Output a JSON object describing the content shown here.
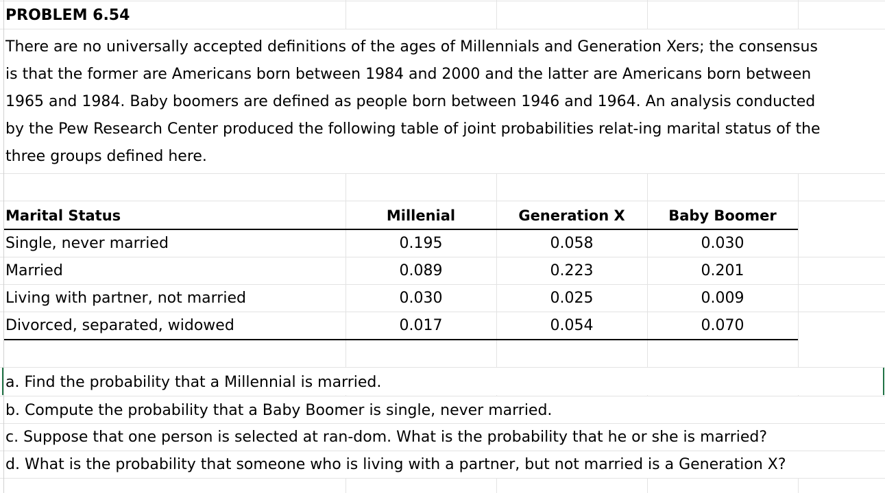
{
  "title": "PROBLEM 6.54",
  "description_lines": [
    "There are no universally accepted definitions of the ages of Millennials and Generation Xers; the consensus",
    "is that the former are Americans born between 1984 and 2000 and the latter are Americans born between",
    "1965 and 1984. Baby boomers are defined as people born between 1946 and 1964. An analysis conducted",
    "by the Pew Research Center produced the following table of joint probabilities relat-ing marital status of the",
    "three groups defined here."
  ],
  "table": {
    "headers": [
      "Marital Status",
      "Millenial",
      "Generation X",
      "Baby Boomer"
    ],
    "rows": [
      {
        "status": "Single, never married",
        "millenial": "0.195",
        "genx": "0.058",
        "boomer": "0.030"
      },
      {
        "status": "Married",
        "millenial": "0.089",
        "genx": "0.223",
        "boomer": "0.201"
      },
      {
        "status": "Living with partner, not married",
        "millenial": "0.030",
        "genx": "0.025",
        "boomer": "0.009"
      },
      {
        "status": "Divorced, separated, widowed",
        "millenial": "0.017",
        "genx": "0.054",
        "boomer": "0.070"
      }
    ]
  },
  "questions": [
    "a. Find the probability that a Millennial is married.",
    "b. Compute the probability that a Baby Boomer is single, never married.",
    "c. Suppose that one person is selected at ran-dom. What is the probability that he or she is married?",
    "d. What is the probability that someone who is living with a partner, but not married is a Generation X?"
  ],
  "colors": {
    "gridline": "#e3e3e3",
    "selection": "#217346",
    "text": "#000000"
  }
}
